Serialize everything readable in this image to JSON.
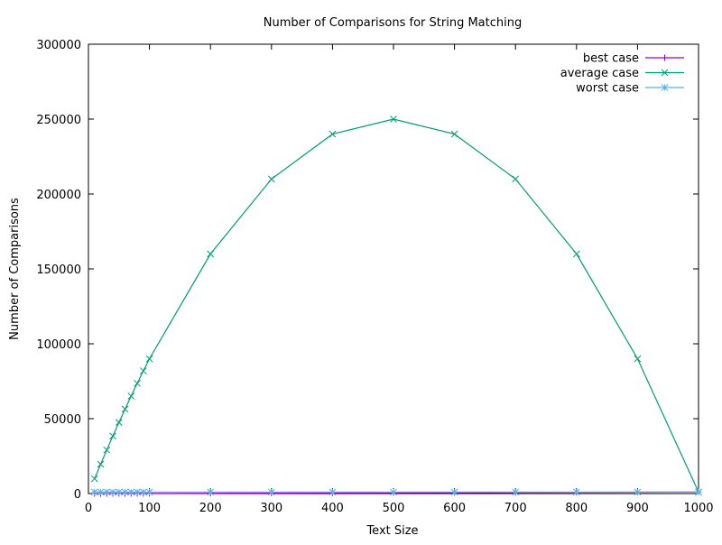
{
  "chart_data": {
    "type": "line",
    "title": "Number of Comparisons for String Matching",
    "xlabel": "Text Size",
    "ylabel": "Number of Comparisons",
    "xlim": [
      0,
      1000
    ],
    "ylim": [
      0,
      300000
    ],
    "x_ticks": [
      0,
      100,
      200,
      300,
      400,
      500,
      600,
      700,
      800,
      900,
      1000
    ],
    "y_ticks": [
      0,
      50000,
      100000,
      150000,
      200000,
      250000,
      300000
    ],
    "x_tick_labels": [
      "0",
      "100",
      "200",
      "300",
      "400",
      "500",
      "600",
      "700",
      "800",
      "900",
      "1000"
    ],
    "y_tick_labels": [
      "0",
      "50000",
      "100000",
      "150000",
      "200000",
      "250000",
      "300000"
    ],
    "grid": false,
    "legend_position": "top-right",
    "x": [
      10,
      20,
      30,
      40,
      50,
      60,
      70,
      80,
      90,
      100,
      200,
      300,
      400,
      500,
      600,
      700,
      800,
      900,
      1000
    ],
    "series": [
      {
        "name": "best case",
        "color": "#9400d3",
        "marker": "plus",
        "values": [
          10,
          20,
          30,
          40,
          50,
          60,
          70,
          80,
          90,
          100,
          200,
          300,
          400,
          500,
          600,
          700,
          800,
          900,
          1000
        ]
      },
      {
        "name": "average case",
        "color": "#009e73",
        "marker": "cross",
        "values": [
          9900,
          19600,
          29100,
          38400,
          47500,
          56400,
          65100,
          73600,
          81900,
          90000,
          160000,
          210000,
          240000,
          250000,
          240000,
          210000,
          160000,
          90000,
          1000
        ]
      },
      {
        "name": "worst case",
        "color": "#56b4e9",
        "marker": "star",
        "values": [
          1000,
          1000,
          1000,
          1000,
          1000,
          1000,
          1000,
          1000,
          1000,
          1000,
          1000,
          1000,
          1000,
          1000,
          1000,
          1000,
          1000,
          1000,
          1000
        ]
      }
    ]
  }
}
